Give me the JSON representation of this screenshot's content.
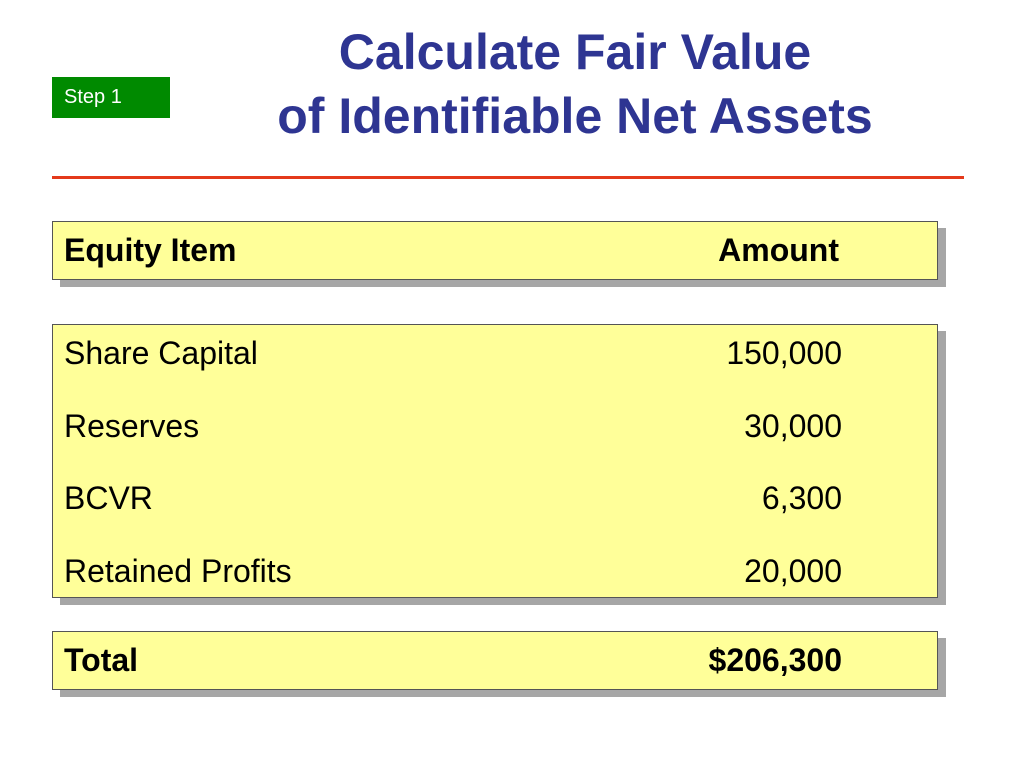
{
  "badge": {
    "label": "Step 1",
    "color": "#008a00"
  },
  "title": {
    "line1": "Calculate Fair Value",
    "line2": "of Identifiable Net Assets",
    "color": "#2e3592"
  },
  "accent_rule_color": "#e4391b",
  "panel_color": "#ffff99",
  "table": {
    "header": {
      "item": "Equity Item",
      "amount": "Amount"
    },
    "rows": [
      {
        "item": "Share Capital",
        "amount": "150,000"
      },
      {
        "item": "Reserves",
        "amount": "30,000"
      },
      {
        "item": "BCVR",
        "amount": "6,300"
      },
      {
        "item": "Retained Profits",
        "amount": "20,000"
      }
    ],
    "total": {
      "item": "Total",
      "amount": "$206,300"
    }
  }
}
